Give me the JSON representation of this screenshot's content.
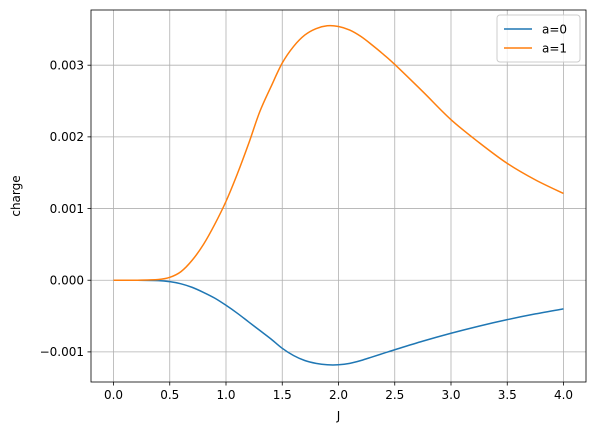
{
  "chart_data": {
    "type": "line",
    "xlabel": "J",
    "ylabel": "charge",
    "xlim": [
      -0.2,
      4.2
    ],
    "ylim": [
      -0.00142,
      0.00377
    ],
    "xticks": [
      0.0,
      0.5,
      1.0,
      1.5,
      2.0,
      2.5,
      3.0,
      3.5,
      4.0
    ],
    "xtick_labels": [
      "0.0",
      "0.5",
      "1.0",
      "1.5",
      "2.0",
      "2.5",
      "3.0",
      "3.5",
      "4.0"
    ],
    "yticks": [
      -0.001,
      0.0,
      0.001,
      0.002,
      0.003
    ],
    "ytick_labels": [
      "−0.001",
      "0.000",
      "0.001",
      "0.002",
      "0.003"
    ],
    "grid": true,
    "legend": "top-right",
    "series": [
      {
        "name": "a=0",
        "color": "#1f77b4",
        "x": [
          0.0,
          0.2,
          0.4,
          0.5,
          0.6,
          0.7,
          0.8,
          0.9,
          1.0,
          1.1,
          1.2,
          1.3,
          1.4,
          1.5,
          1.6,
          1.7,
          1.8,
          1.9,
          2.0,
          2.1,
          2.2,
          2.3,
          2.4,
          2.5,
          2.75,
          3.0,
          3.25,
          3.5,
          3.75,
          4.0
        ],
        "y": [
          0.0,
          0.0,
          -5e-06,
          -2e-05,
          -5e-05,
          -0.0001,
          -0.00017,
          -0.00025,
          -0.00035,
          -0.00046,
          -0.00058,
          -0.0007,
          -0.00082,
          -0.00095,
          -0.00105,
          -0.00112,
          -0.00116,
          -0.00118,
          -0.00118,
          -0.00116,
          -0.00112,
          -0.00107,
          -0.00102,
          -0.00097,
          -0.00085,
          -0.00074,
          -0.00064,
          -0.00055,
          -0.00047,
          -0.0004
        ]
      },
      {
        "name": "a=1",
        "color": "#ff7f0e",
        "x": [
          0.0,
          0.2,
          0.4,
          0.5,
          0.6,
          0.7,
          0.8,
          0.9,
          1.0,
          1.1,
          1.2,
          1.3,
          1.4,
          1.5,
          1.6,
          1.7,
          1.8,
          1.9,
          2.0,
          2.1,
          2.2,
          2.3,
          2.4,
          2.5,
          2.75,
          3.0,
          3.25,
          3.5,
          3.75,
          4.0
        ],
        "y": [
          0.0,
          0.0,
          1e-05,
          4e-05,
          0.00012,
          0.00028,
          0.0005,
          0.00078,
          0.0011,
          0.00148,
          0.0019,
          0.00235,
          0.0027,
          0.00303,
          0.00326,
          0.00342,
          0.00351,
          0.00355,
          0.00354,
          0.00349,
          0.0034,
          0.00328,
          0.00315,
          0.00301,
          0.00263,
          0.00224,
          0.00192,
          0.00163,
          0.0014,
          0.00121
        ]
      }
    ]
  }
}
